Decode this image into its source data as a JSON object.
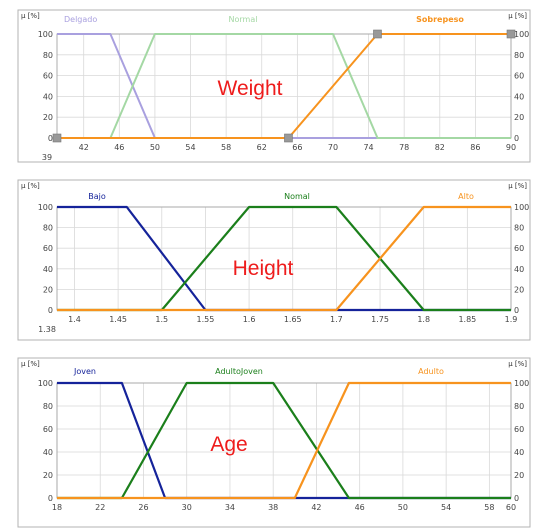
{
  "chart_data": [
    {
      "type": "line",
      "title": "Weight",
      "mu_label": "μ [%]",
      "xlim": [
        39,
        90
      ],
      "ylim": [
        0,
        100
      ],
      "grid": true,
      "x_ticks": [
        "39",
        "42",
        "46",
        "50",
        "54",
        "58",
        "62",
        "66",
        "70",
        "74",
        "78",
        "82",
        "86",
        "90"
      ],
      "y_ticks": [
        "0",
        "20",
        "40",
        "60",
        "80",
        "100"
      ],
      "legend_placement": "top",
      "series": [
        {
          "name": "Delgado",
          "x": [
            39,
            45,
            50,
            90
          ],
          "values": [
            100,
            100,
            0,
            0
          ]
        },
        {
          "name": "Normal",
          "x": [
            39,
            45,
            50,
            70,
            75,
            90
          ],
          "values": [
            0,
            0,
            100,
            100,
            0,
            0
          ]
        },
        {
          "name": "Sobrepeso",
          "x": [
            39,
            65,
            75,
            90
          ],
          "values": [
            0,
            0,
            100,
            100
          ]
        }
      ]
    },
    {
      "type": "line",
      "title": "Height",
      "mu_label": "μ [%]",
      "xlim": [
        1.38,
        1.9
      ],
      "ylim": [
        0,
        100
      ],
      "grid": true,
      "x_ticks": [
        "1.38",
        "1.4",
        "1.45",
        "1.5",
        "1.55",
        "1.6",
        "1.65",
        "1.7",
        "1.75",
        "1.8",
        "1.85",
        "1.9"
      ],
      "y_ticks": [
        "0",
        "20",
        "40",
        "60",
        "80",
        "100"
      ],
      "legend_placement": "top",
      "series": [
        {
          "name": "Bajo",
          "x": [
            1.38,
            1.46,
            1.55,
            1.9
          ],
          "values": [
            100,
            100,
            0,
            0
          ]
        },
        {
          "name": "Nomal",
          "x": [
            1.38,
            1.5,
            1.6,
            1.7,
            1.8,
            1.9
          ],
          "values": [
            0,
            0,
            100,
            100,
            0,
            0
          ]
        },
        {
          "name": "Alto",
          "x": [
            1.38,
            1.7,
            1.8,
            1.9
          ],
          "values": [
            0,
            0,
            100,
            100
          ]
        }
      ]
    },
    {
      "type": "line",
      "title": "Age",
      "mu_label": "μ [%]",
      "xlim": [
        18,
        60
      ],
      "ylim": [
        0,
        100
      ],
      "grid": true,
      "x_ticks": [
        "18",
        "22",
        "26",
        "30",
        "34",
        "38",
        "42",
        "46",
        "50",
        "54",
        "58",
        "60"
      ],
      "y_ticks": [
        "0",
        "20",
        "40",
        "60",
        "80",
        "100"
      ],
      "legend_placement": "top",
      "series": [
        {
          "name": "Joven",
          "x": [
            18,
            24,
            28,
            60
          ],
          "values": [
            100,
            100,
            0,
            0
          ]
        },
        {
          "name": "AdultoJoven",
          "x": [
            18,
            24,
            30,
            38,
            45,
            60
          ],
          "values": [
            0,
            0,
            100,
            100,
            0,
            0
          ]
        },
        {
          "name": "Adulto",
          "x": [
            18,
            40,
            45,
            60
          ],
          "values": [
            0,
            0,
            100,
            100
          ]
        }
      ]
    }
  ],
  "colors": {
    "weight": [
      "#a9a0df",
      "#a4d8a4",
      "#f7931e"
    ],
    "height_age": [
      "#15239a",
      "#1b7f1b",
      "#f7931e"
    ],
    "grid": "#d9d9d9",
    "frame": "#b3b3b3",
    "title": "#ee1c1c",
    "marker": "#999999"
  }
}
